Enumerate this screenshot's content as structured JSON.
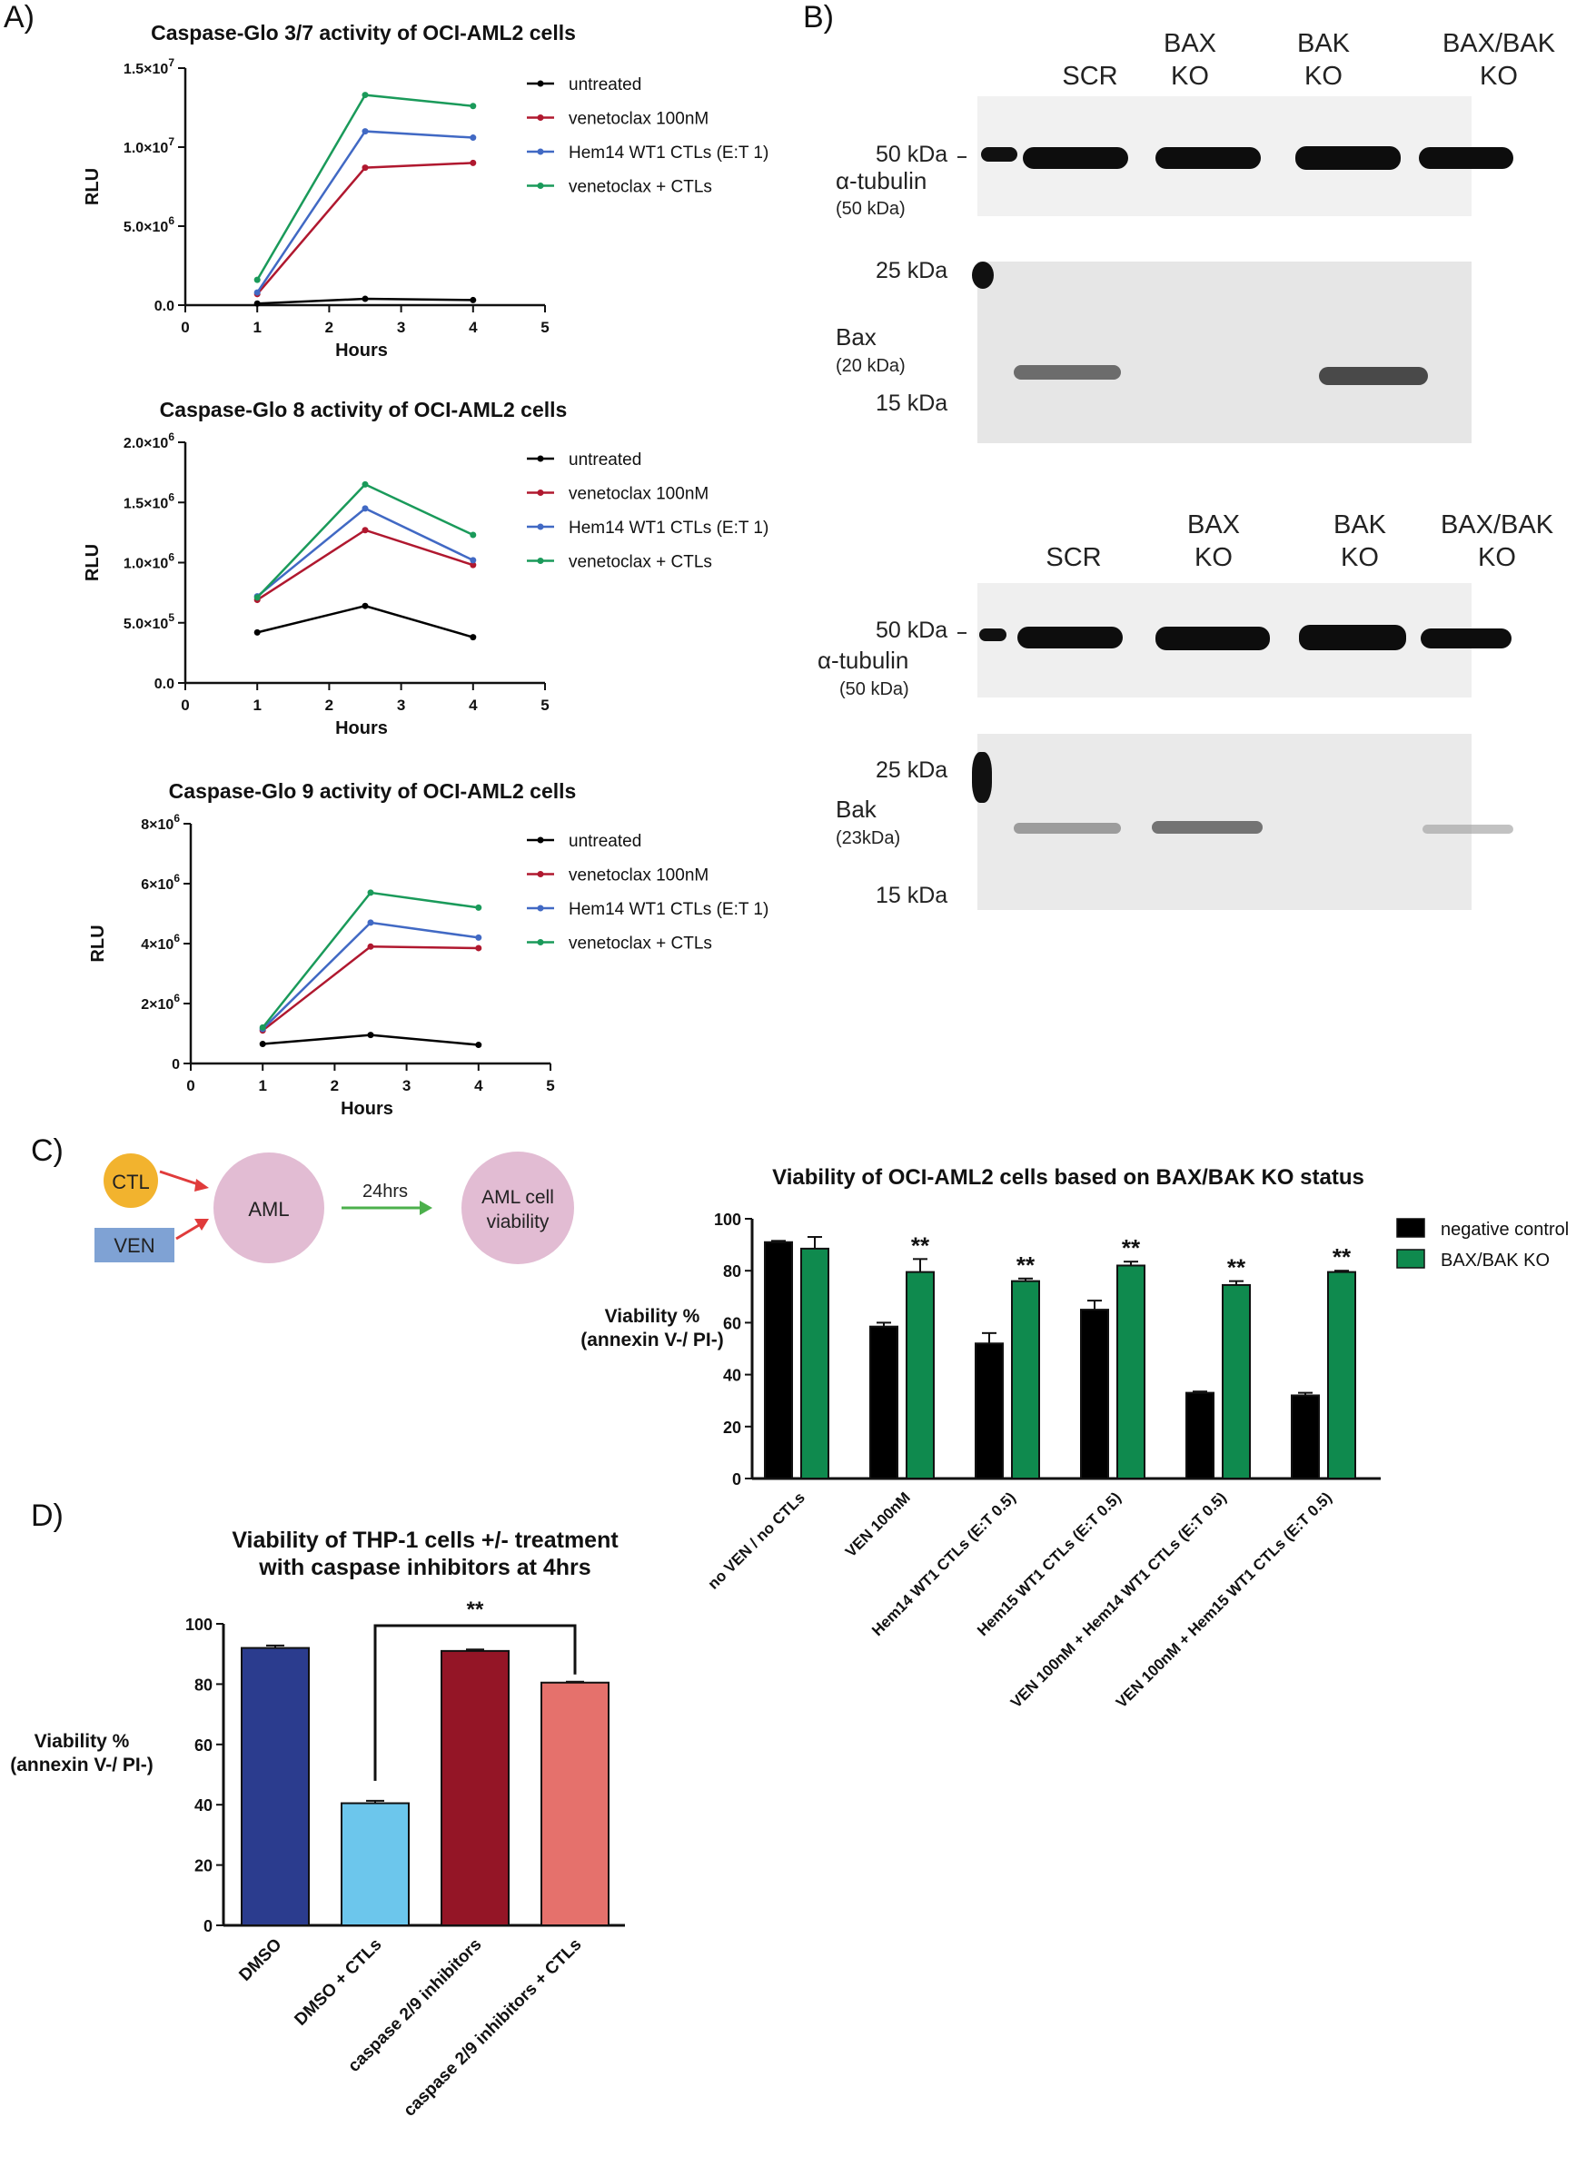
{
  "panels": {
    "A": "A)",
    "B": "B)",
    "C": "C)",
    "D": "D)"
  },
  "colors": {
    "untreated": "#000000",
    "venetoclax": "#b0182f",
    "ctl": "#4169c4",
    "combo": "#1a9a5a",
    "negative": "#000000",
    "baxbak": "#0f8a4e",
    "dmso": "#2b3c8e",
    "dmso_ctl": "#6cc6ec",
    "casp": "#941526",
    "casp_ctl": "#e5716c"
  },
  "chart_data": [
    {
      "type": "line",
      "title": "Caspase-Glo 3/7 activity of OCI-AML2 cells",
      "xlabel": "Hours",
      "ylabel": "RLU",
      "xlim": [
        0,
        5
      ],
      "xticks": [
        "0",
        "1",
        "2",
        "3",
        "4",
        "5"
      ],
      "ylim": [
        0,
        15000000
      ],
      "yticks": [
        {
          "v": 0,
          "b": "0.0",
          "e": ""
        },
        {
          "v": 5000000,
          "b": "5.0×10",
          "e": "6"
        },
        {
          "v": 10000000,
          "b": "1.0×10",
          "e": "7"
        },
        {
          "v": 15000000,
          "b": "1.5×10",
          "e": "7"
        }
      ],
      "x": [
        1,
        2.5,
        4
      ],
      "series": [
        {
          "name": "untreated",
          "key": "untreated",
          "values": [
            100000,
            400000,
            320000
          ]
        },
        {
          "name": "venetoclax 100nM",
          "key": "venetoclax",
          "values": [
            700000,
            8700000,
            9000000
          ]
        },
        {
          "name": "Hem14 WT1 CTLs (E:T 1)",
          "key": "ctl",
          "values": [
            800000,
            11000000,
            10600000
          ]
        },
        {
          "name": "venetoclax + CTLs",
          "key": "combo",
          "values": [
            1600000,
            13300000,
            12600000
          ]
        }
      ]
    },
    {
      "type": "line",
      "title": "Caspase-Glo 8 activity of OCI-AML2 cells",
      "xlabel": "Hours",
      "ylabel": "RLU",
      "xlim": [
        0,
        5
      ],
      "xticks": [
        "0",
        "1",
        "2",
        "3",
        "4",
        "5"
      ],
      "ylim": [
        0,
        2000000
      ],
      "yticks": [
        {
          "v": 0,
          "b": "0.0",
          "e": ""
        },
        {
          "v": 500000,
          "b": "5.0×10",
          "e": "5"
        },
        {
          "v": 1000000,
          "b": "1.0×10",
          "e": "6"
        },
        {
          "v": 1500000,
          "b": "1.5×10",
          "e": "6"
        },
        {
          "v": 2000000,
          "b": "2.0×10",
          "e": "6"
        }
      ],
      "x": [
        1,
        2.5,
        4
      ],
      "series": [
        {
          "name": "untreated",
          "key": "untreated",
          "values": [
            420000,
            640000,
            380000
          ]
        },
        {
          "name": "venetoclax 100nM",
          "key": "venetoclax",
          "values": [
            690000,
            1270000,
            980000
          ]
        },
        {
          "name": "Hem14 WT1 CTLs (E:T 1)",
          "key": "ctl",
          "values": [
            720000,
            1450000,
            1020000
          ]
        },
        {
          "name": "venetoclax + CTLs",
          "key": "combo",
          "values": [
            710000,
            1650000,
            1230000
          ]
        }
      ]
    },
    {
      "type": "line",
      "title": "Caspase-Glo 9 activity of OCI-AML2 cells",
      "xlabel": "Hours",
      "ylabel": "RLU",
      "xlim": [
        0,
        5
      ],
      "xticks": [
        "0",
        "1",
        "2",
        "3",
        "4",
        "5"
      ],
      "ylim": [
        0,
        8000000
      ],
      "yticks": [
        {
          "v": 0,
          "b": "0",
          "e": ""
        },
        {
          "v": 2000000,
          "b": "2×10",
          "e": "6"
        },
        {
          "v": 4000000,
          "b": "4×10",
          "e": "6"
        },
        {
          "v": 6000000,
          "b": "6×10",
          "e": "6"
        },
        {
          "v": 8000000,
          "b": "8×10",
          "e": "6"
        }
      ],
      "x": [
        1,
        2.5,
        4
      ],
      "series": [
        {
          "name": "untreated",
          "key": "untreated",
          "values": [
            650000,
            950000,
            620000
          ]
        },
        {
          "name": "venetoclax 100nM",
          "key": "venetoclax",
          "values": [
            1100000,
            3900000,
            3850000
          ]
        },
        {
          "name": "Hem14 WT1 CTLs (E:T 1)",
          "key": "ctl",
          "values": [
            1150000,
            4700000,
            4200000
          ]
        },
        {
          "name": "venetoclax + CTLs",
          "key": "combo",
          "values": [
            1200000,
            5700000,
            5200000
          ]
        }
      ]
    },
    {
      "type": "bar",
      "title": "Viability of OCI-AML2 cells based on BAX/BAK KO status",
      "ylabel": [
        "Viability %",
        "(annexin V-/ PI-)"
      ],
      "ylim": [
        0,
        100
      ],
      "yticks": [
        "0",
        "20",
        "40",
        "60",
        "80",
        "100"
      ],
      "categories": [
        "no VEN / no CTLs",
        "VEN 100nM",
        "Hem14 WT1 CTLs (E:T 0.5)",
        "Hem15 WT1 CTLs (E:T 0.5)",
        "VEN 100nM + Hem14 WT1 CTLs (E:T 0.5)",
        "VEN 100nM + Hem15 WT1 CTLs (E:T 0.5)"
      ],
      "series": [
        {
          "name": "negative control",
          "key": "negative",
          "values": [
            91,
            58.5,
            52,
            65,
            33,
            32
          ],
          "errors": [
            0.5,
            1.5,
            4,
            3.5,
            0.5,
            1
          ]
        },
        {
          "name": "BAX/BAK KO",
          "key": "baxbak",
          "values": [
            88.5,
            79.5,
            76,
            82,
            74.5,
            79.5
          ],
          "errors": [
            4.5,
            5,
            1,
            1.5,
            1.5,
            0.5
          ]
        }
      ],
      "annotations": [
        "",
        "**",
        "**",
        "**",
        "**",
        "**"
      ]
    },
    {
      "type": "bar",
      "title": [
        "Viability of THP-1 cells +/- treatment",
        "with caspase inhibitors at 4hrs"
      ],
      "ylabel": [
        "Viability %",
        "(annexin V-/ PI-)"
      ],
      "ylim": [
        0,
        100
      ],
      "yticks": [
        "0",
        "20",
        "40",
        "60",
        "80",
        "100"
      ],
      "categories": [
        "DMSO",
        "DMSO + CTLs",
        "caspase 2/9 inhibitors",
        "caspase 2/9 inhibitors + CTLs"
      ],
      "values": [
        92,
        40.5,
        91,
        80.5
      ],
      "errors": [
        0.8,
        0.8,
        0.5,
        0.3
      ],
      "color_keys": [
        "dmso",
        "dmso_ctl",
        "casp",
        "casp_ctl"
      ],
      "significance": {
        "label": "**",
        "from": 1,
        "to": 3
      }
    }
  ],
  "schematic": {
    "ctl": "CTL",
    "ven": "VEN",
    "aml": "AML",
    "time": "24hrs",
    "viability_line1": "AML cell",
    "viability_line2": "viability"
  },
  "blots": {
    "top": {
      "lane_headers": [
        [
          "SCR",
          ""
        ],
        [
          "BAX",
          "KO"
        ],
        [
          "BAK",
          "KO"
        ],
        [
          "BAX/BAK",
          "KO"
        ]
      ],
      "mw": {
        "tubulin_marker": "50 kDa",
        "upper": "25 kDa",
        "lower": "15 kDa"
      },
      "loading": {
        "name": "α-tubulin",
        "size": "(50 kDa)"
      },
      "target": {
        "name": "Bax",
        "size": "(20 kDa)"
      }
    },
    "bottom": {
      "lane_headers": [
        [
          "SCR",
          ""
        ],
        [
          "BAX",
          "KO"
        ],
        [
          "BAK",
          "KO"
        ],
        [
          "BAX/BAK",
          "KO"
        ]
      ],
      "mw": {
        "tubulin_marker": "50 kDa",
        "upper": "25 kDa",
        "lower": "15 kDa"
      },
      "loading": {
        "name": "α-tubulin",
        "size": "(50 kDa)"
      },
      "target": {
        "name": "Bak",
        "size": "(23kDa)"
      }
    }
  }
}
